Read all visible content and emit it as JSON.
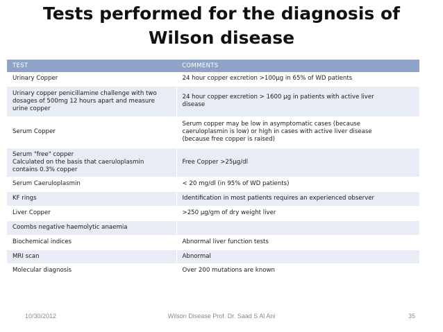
{
  "slide": {
    "title_line1": "Tests performed for the diagnosis of",
    "title_line2": "Wilson disease"
  },
  "table": {
    "headers": [
      "TEST",
      "COMMENTS"
    ],
    "rows": [
      {
        "test": [
          "Urinary Copper"
        ],
        "comment": [
          "24 hour copper excretion >100μg in 65% of WD patients"
        ]
      },
      {
        "test": [
          "Urinary copper penicillamine challenge with two",
          "dosages of 500mg 12 hours apart and measure",
          "urine copper"
        ],
        "comment": [
          "24 hour copper excretion > 1600 μg in patients with active liver",
          "disease"
        ]
      },
      {
        "test": [
          "Serum Copper"
        ],
        "comment": [
          "Serum copper may be low in asymptomatic cases (because",
          "caeruloplasmin is low) or high in cases with active liver disease",
          "(because free copper is raised)"
        ]
      },
      {
        "test": [
          "Serum \"free\" copper",
          "Calculated on the basis that caeruloplasmin",
          "contains 0.3% copper"
        ],
        "comment": [
          "Free Copper >25μg/dl"
        ]
      },
      {
        "test": [
          "Serum Caeruloplasmin"
        ],
        "comment": [
          "< 20 mg/dl (in 95% of WD patients)"
        ]
      },
      {
        "test": [
          "KF rings"
        ],
        "comment": [
          "Identification in most patients requires an experienced observer"
        ]
      },
      {
        "test": [
          "Liver Copper"
        ],
        "comment": [
          ">250 μg/gm of dry weight liver"
        ]
      },
      {
        "test": [
          "Coombs negative haemolytic anaemia"
        ],
        "comment": [
          ""
        ]
      },
      {
        "test": [
          "Biochemical indices"
        ],
        "comment": [
          "Abnormal liver function tests"
        ]
      },
      {
        "test": [
          "MRI scan"
        ],
        "comment": [
          "Abnormal"
        ]
      },
      {
        "test": [
          "Molecular diagnosis"
        ],
        "comment": [
          "Over 200 mutations are known"
        ]
      }
    ]
  },
  "footer": {
    "date": "10/30/2012",
    "center": "Wilson Disease Prof. Dr. Saad S Al Ani",
    "page": "35"
  }
}
